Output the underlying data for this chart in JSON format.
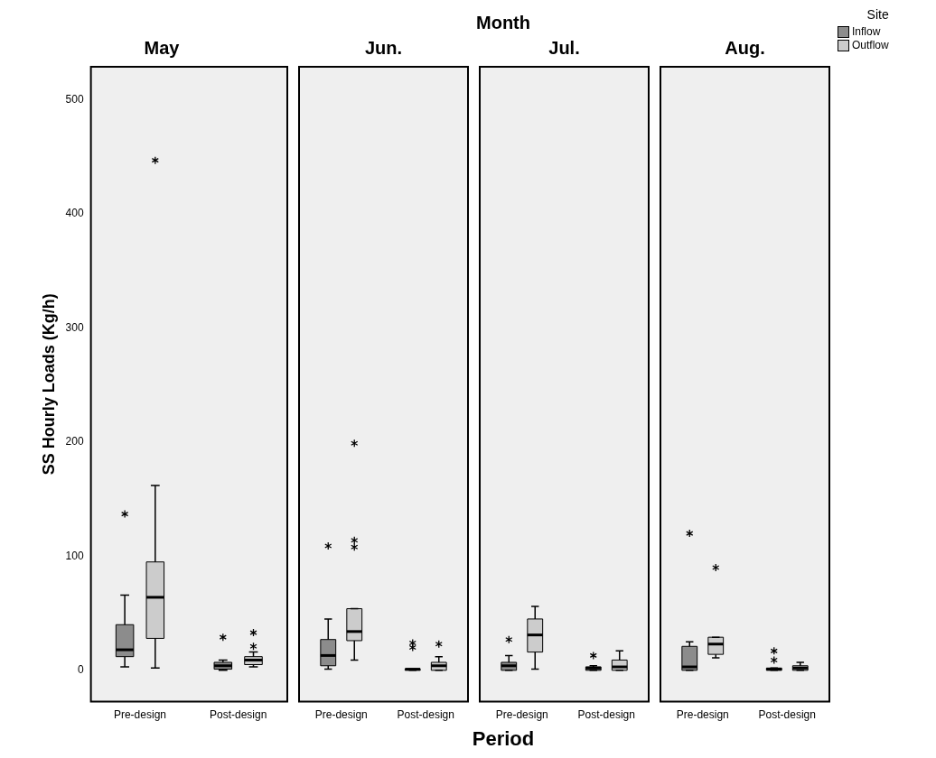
{
  "chart_data": [
    {
      "type": "box",
      "title": "May",
      "ylabel": "SS Hourly Loads (Kg/h)",
      "categories": [
        "Pre-design",
        "Post-design"
      ],
      "ylim": [
        -27.5,
        529
      ],
      "yticks": [
        0,
        100,
        200,
        300,
        400,
        500
      ],
      "series": [
        {
          "color": "#8c8c8c",
          "boxes": [
            {
              "low": 3,
              "q1": 12,
              "median": 18,
              "q3": 40,
              "high": 66,
              "outliers": [
                137
              ]
            },
            {
              "low": 0,
              "q1": 1,
              "median": 4,
              "q3": 7,
              "high": 9,
              "outliers": [
                29
              ]
            }
          ]
        },
        {
          "color": "#cccccc",
          "boxes": [
            {
              "low": 2,
              "q1": 28,
              "median": 64,
              "q3": 95,
              "high": 162,
              "outliers": [
                447
              ]
            },
            {
              "low": 3,
              "q1": 5,
              "median": 9,
              "q3": 12,
              "high": 16,
              "outliers": [
                21,
                33
              ]
            }
          ]
        }
      ]
    },
    {
      "type": "box",
      "title": "Jun.",
      "tick_labels": "x",
      "categories": [
        "Pre-design",
        "Post-design"
      ],
      "ylim": [
        -27.5,
        529
      ],
      "yticks": [
        0,
        100,
        200,
        300,
        400,
        500
      ],
      "series": [
        {
          "color": "#8c8c8c",
          "boxes": [
            {
              "low": 1,
              "q1": 4,
              "median": 13,
              "q3": 27,
              "high": 45,
              "outliers": [
                109
              ]
            },
            {
              "low": 0,
              "q1": 0,
              "median": 1,
              "q3": 1,
              "high": 1,
              "outliers": [
                20,
                24
              ]
            }
          ]
        },
        {
          "color": "#cccccc",
          "boxes": [
            {
              "low": 9,
              "q1": 26,
              "median": 34,
              "q3": 54,
              "high": 54,
              "outliers": [
                108,
                114,
                199
              ]
            },
            {
              "low": 0,
              "q1": 0,
              "median": 4,
              "q3": 7,
              "high": 12,
              "outliers": [
                23
              ]
            }
          ]
        }
      ]
    },
    {
      "type": "box",
      "title": "Jul.",
      "xlabel": "Period",
      "annotations": [
        "Month"
      ],
      "tick_labels": "x",
      "categories": [
        "Pre-design",
        "Post-design"
      ],
      "ylim": [
        -27.5,
        529
      ],
      "yticks": [
        0,
        100,
        200,
        300,
        400,
        500
      ],
      "series": [
        {
          "color": "#8c8c8c",
          "boxes": [
            {
              "low": 0,
              "q1": 0,
              "median": 4,
              "q3": 7,
              "high": 13,
              "outliers": [
                27
              ]
            },
            {
              "low": 0,
              "q1": 0,
              "median": 2,
              "q3": 3,
              "high": 4,
              "outliers": [
                13
              ]
            }
          ]
        },
        {
          "color": "#cccccc",
          "boxes": [
            {
              "low": 1,
              "q1": 16,
              "median": 31,
              "q3": 45,
              "high": 56
            },
            {
              "low": 0,
              "q1": 0,
              "median": 3,
              "q3": 9,
              "high": 17
            }
          ]
        }
      ]
    },
    {
      "type": "box",
      "title": "Aug.",
      "tick_labels": "x",
      "legend": "top right",
      "legend_title": "Site",
      "categories": [
        "Pre-design",
        "Post-design"
      ],
      "ylim": [
        -27.5,
        529
      ],
      "yticks": [
        0,
        100,
        200,
        300,
        400,
        500
      ],
      "series": [
        {
          "name": "Inflow",
          "color": "#8c8c8c",
          "boxes": [
            {
              "low": 0,
              "q1": 0,
              "median": 3,
              "q3": 21,
              "high": 25,
              "outliers": [
                120
              ]
            },
            {
              "low": 0,
              "q1": 0,
              "median": 1,
              "q3": 2,
              "high": 2,
              "outliers": [
                9,
                17
              ]
            }
          ]
        },
        {
          "name": "Outflow",
          "color": "#cccccc",
          "boxes": [
            {
              "low": 11,
              "q1": 14,
              "median": 23,
              "q3": 29,
              "high": 29,
              "outliers": [
                90
              ]
            },
            {
              "low": 0,
              "q1": 0,
              "median": 2,
              "q3": 4,
              "high": 7
            }
          ]
        }
      ]
    }
  ]
}
